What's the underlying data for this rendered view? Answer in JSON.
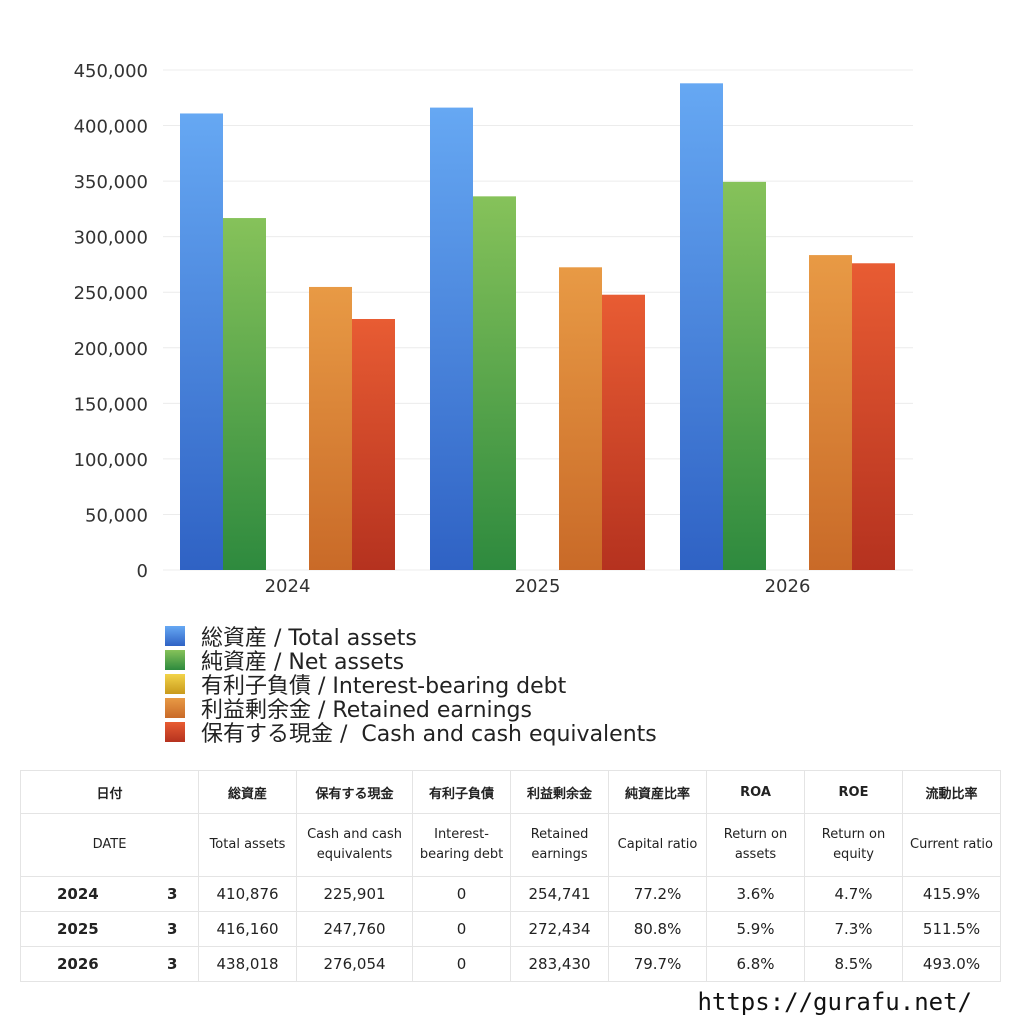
{
  "chart_data": {
    "type": "bar",
    "categories": [
      "2024",
      "2025",
      "2026"
    ],
    "series": [
      {
        "name": "総資産 / Total assets",
        "values": [
          410876,
          416160,
          438018
        ],
        "color_top": "#66a8f3",
        "color_bottom": "#2f62c4"
      },
      {
        "name": "純資産 / Net assets",
        "values": [
          316750,
          336290,
          349330
        ],
        "color_top": "#86c25a",
        "color_bottom": "#2e8a3e"
      },
      {
        "name": "有利子負債 / Interest-bearing debt",
        "values": [
          0,
          0,
          0
        ],
        "color_top": "#f2d349",
        "color_bottom": "#c99a1c"
      },
      {
        "name": "利益剰余金 / Retained earnings",
        "values": [
          254741,
          272434,
          283430
        ],
        "color_top": "#e89a45",
        "color_bottom": "#c96a28"
      },
      {
        "name": "保有する現金 /  Cash and cash equivalents",
        "values": [
          225901,
          247760,
          276054
        ],
        "color_top": "#e85c33",
        "color_bottom": "#b5321f"
      }
    ],
    "ylim": [
      0,
      450000
    ],
    "yticks": [
      "450,000",
      "400,000",
      "350,000",
      "300,000",
      "250,000",
      "200,000",
      "150,000",
      "100,000",
      "50,000",
      "0"
    ],
    "yticks_values": [
      450000,
      400000,
      350000,
      300000,
      250000,
      200000,
      150000,
      100000,
      50000,
      0
    ],
    "grid": true,
    "legend_position": "bottom"
  },
  "table": {
    "header_jp": [
      "日付",
      "総資産",
      "保有する現金",
      "有利子負債",
      "利益剰余金",
      "純資産比率",
      "ROA",
      "ROE",
      "流動比率"
    ],
    "header_en": [
      "DATE",
      "Total assets",
      "Cash and cash equivalents",
      "Interest-bearing debt",
      "Retained earnings",
      "Capital ratio",
      "Return on assets",
      "Return on equity",
      "Current ratio"
    ],
    "rows": [
      {
        "year": "2024",
        "q": "3",
        "values": [
          "410,876",
          "225,901",
          "0",
          "254,741",
          "77.2%",
          "3.6%",
          "4.7%",
          "415.9%"
        ]
      },
      {
        "year": "2025",
        "q": "3",
        "values": [
          "416,160",
          "247,760",
          "0",
          "272,434",
          "80.8%",
          "5.9%",
          "7.3%",
          "511.5%"
        ]
      },
      {
        "year": "2026",
        "q": "3",
        "values": [
          "438,018",
          "276,054",
          "0",
          "283,430",
          "79.7%",
          "6.8%",
          "8.5%",
          "493.0%"
        ]
      }
    ]
  },
  "footer": {
    "url": "https://gurafu.net/"
  }
}
